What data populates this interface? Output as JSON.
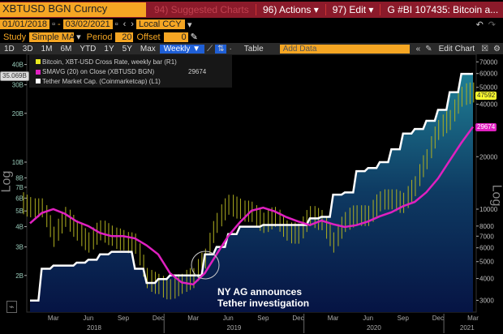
{
  "header": {
    "ticker": "XBTUSD BGN Curncy",
    "suggested": "94) Suggested Charts",
    "actions": "96) Actions ▾",
    "edit": "97) Edit ▾",
    "title": "G #BI 107435: Bitcoin a..."
  },
  "dates": {
    "start": "01/01/2018",
    "end": "03/02/2021",
    "currency": "Local CCY"
  },
  "study": {
    "label": "Study",
    "value": "Simple MA",
    "period_label": "Period",
    "period": "20",
    "offset_label": "Offset",
    "offset": "0"
  },
  "toolbar": {
    "ranges": [
      "1D",
      "3D",
      "1M",
      "6M",
      "YTD",
      "1Y",
      "5Y",
      "Max"
    ],
    "freq": "Weekly ▼",
    "table": "Table",
    "add_data": "Add Data",
    "edit_chart": "Edit Chart"
  },
  "legend": {
    "items": [
      "Bitcoin, XBT-USD Cross Rate, weekly bar (R1)",
      "SMAVG (20)  on Close (XBTUSD BGN)",
      "Tether Market Cap. (Coinmarketcap) (L1)"
    ],
    "sma_value": "29674"
  },
  "tags": {
    "tether": "35.069B",
    "btc": "47592",
    "sma": "29674"
  },
  "axis_label": "Log",
  "annotation": [
    "NY AG announces",
    "Tether investigation"
  ],
  "colors": {
    "btc": "#c8c82a",
    "sma": "#e020c0",
    "tether": "#ffffff"
  },
  "chart_data": {
    "type": "line",
    "x_months": [
      "2018-01",
      "2018-02",
      "2018-03",
      "2018-04",
      "2018-05",
      "2018-06",
      "2018-07",
      "2018-08",
      "2018-09",
      "2018-10",
      "2018-11",
      "2018-12",
      "2019-01",
      "2019-02",
      "2019-03",
      "2019-04",
      "2019-05",
      "2019-06",
      "2019-07",
      "2019-08",
      "2019-09",
      "2019-10",
      "2019-11",
      "2019-12",
      "2020-01",
      "2020-02",
      "2020-03",
      "2020-04",
      "2020-05",
      "2020-06",
      "2020-07",
      "2020-08",
      "2020-09",
      "2020-10",
      "2020-11",
      "2020-12",
      "2021-01",
      "2021-02",
      "2021-03"
    ],
    "series": [
      {
        "name": "Bitcoin close (USD, right)",
        "values": [
          10200,
          10300,
          6900,
          9200,
          7500,
          6400,
          7700,
          7000,
          6600,
          6300,
          4000,
          3700,
          3450,
          3800,
          4100,
          5300,
          8500,
          10800,
          10000,
          9600,
          8300,
          9200,
          7500,
          7200,
          9300,
          8600,
          6400,
          8600,
          9400,
          9100,
          11300,
          11600,
          10800,
          13800,
          19700,
          29000,
          33100,
          45000,
          47592
        ]
      },
      {
        "name": "SMAVG(20) (USD, right)",
        "values": [
          8300,
          9500,
          10000,
          9400,
          8500,
          8000,
          7300,
          7000,
          7000,
          6800,
          6200,
          5500,
          4300,
          3800,
          3700,
          4300,
          5500,
          7000,
          8400,
          9800,
          10200,
          9700,
          9000,
          8500,
          8100,
          8600,
          8200,
          7900,
          8100,
          8500,
          9100,
          9600,
          10400,
          11000,
          12500,
          15000,
          19000,
          24000,
          29674
        ]
      },
      {
        "name": "Tether Market Cap (USD B, left)",
        "values": [
          1.4,
          2.2,
          2.3,
          2.3,
          2.4,
          2.5,
          2.7,
          2.8,
          2.8,
          2.2,
          1.8,
          1.9,
          2.0,
          2.0,
          2.0,
          2.7,
          3.0,
          3.6,
          4.0,
          4.0,
          4.1,
          4.1,
          4.1,
          4.1,
          4.5,
          4.6,
          6.3,
          6.5,
          8.8,
          9.2,
          10,
          12,
          15,
          16,
          18,
          21,
          27,
          35,
          35.069
        ]
      }
    ],
    "left_ticks": [
      "40B",
      "30B",
      "20B",
      "10B",
      "8B",
      "7B",
      "6B",
      "5B",
      "4B",
      "3B",
      "2B"
    ],
    "left_tick_values": [
      40,
      30,
      20,
      10,
      8,
      7,
      6,
      5,
      4,
      3,
      2
    ],
    "right_ticks": [
      "70000",
      "60000",
      "50000",
      "40000",
      "20000",
      "10000",
      "8000",
      "7000",
      "6000",
      "5000",
      "4000",
      "3000"
    ],
    "right_tick_values": [
      70000,
      60000,
      50000,
      40000,
      20000,
      10000,
      8000,
      7000,
      6000,
      5000,
      4000,
      3000
    ],
    "x_ticks": [
      "Mar",
      "Jun",
      "Sep",
      "Dec",
      "Mar",
      "Jun",
      "Sep",
      "Dec",
      "Mar",
      "Jun",
      "Sep",
      "Dec",
      "Mar"
    ],
    "x_tick_months": [
      2,
      5,
      8,
      11,
      14,
      17,
      20,
      23,
      26,
      29,
      32,
      35,
      38
    ],
    "years": [
      "2018",
      "2019",
      "2020",
      "2021"
    ],
    "scale": "log"
  }
}
